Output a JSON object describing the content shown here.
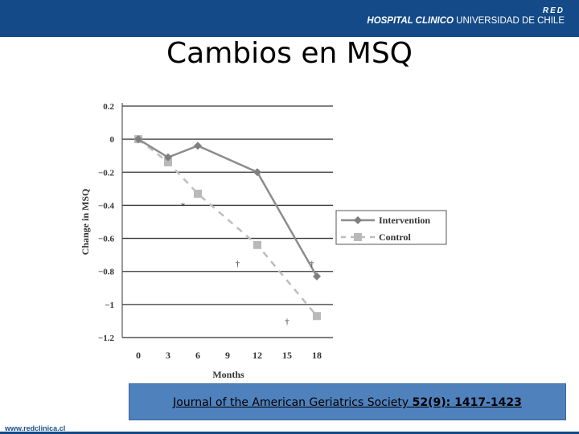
{
  "header": {
    "logo_red": "RED",
    "logo_bold": "HOSPITAL CLINICO",
    "logo_normal": "UNIVERSIDAD DE CHILE"
  },
  "title": "Cambios en MSQ",
  "citation": {
    "prefix": "Journal of the American Geriatrics Society ",
    "volume": "52(9): 1417-1423"
  },
  "footer": {
    "url": "www.redclinica.cl"
  },
  "colors": {
    "header": "#134a87",
    "citation_box": "#4f81bd",
    "intervention": "#888888",
    "control": "#b9b9b9"
  },
  "chart_data": {
    "type": "line",
    "title": "",
    "xlabel": "Months",
    "ylabel": "Change in MSQ",
    "x_ticks": [
      "0",
      "3",
      "6",
      "9",
      "12",
      "15",
      "18"
    ],
    "y_ticks": [
      "0.2",
      "0",
      "−0.2",
      "−0.4",
      "−0.6",
      "−0.8",
      "−1",
      "−1.2"
    ],
    "xlim": [
      -1.5,
      20
    ],
    "ylim": [
      -1.2,
      0.2
    ],
    "grid": "horizontal",
    "legend": "right",
    "series": [
      {
        "name": "Intervention",
        "style": "solid-diamond",
        "points": [
          [
            0,
            0
          ],
          [
            3,
            -0.11
          ],
          [
            6,
            -0.04
          ],
          [
            12,
            -0.2
          ],
          [
            18,
            -0.83
          ]
        ]
      },
      {
        "name": "Control",
        "style": "dashed-square",
        "points": [
          [
            0,
            0
          ],
          [
            3,
            -0.14
          ],
          [
            6,
            -0.33
          ],
          [
            12,
            -0.64
          ],
          [
            18,
            -1.07
          ]
        ]
      }
    ],
    "annotations": [
      {
        "text": "*",
        "x": 4.5,
        "y": -0.4
      },
      {
        "text": "†",
        "x": 10,
        "y": -0.75
      },
      {
        "text": "†",
        "x": 17.5,
        "y": -0.75
      },
      {
        "text": "†",
        "x": 15,
        "y": -1.1
      }
    ]
  }
}
